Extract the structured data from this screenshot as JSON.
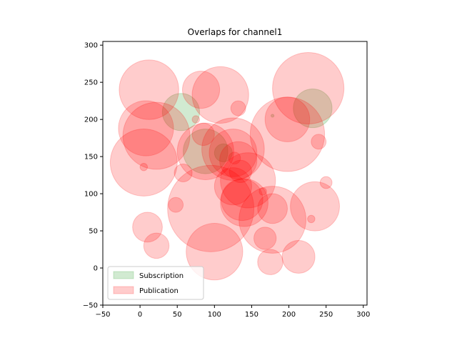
{
  "chart_data": {
    "type": "scatter",
    "title": "Overlaps for channel1",
    "xlabel": "",
    "ylabel": "",
    "xlim": [
      -50,
      305
    ],
    "ylim": [
      -50,
      305
    ],
    "xticks": [
      -50,
      0,
      50,
      100,
      150,
      200,
      250,
      300
    ],
    "yticks": [
      -50,
      0,
      50,
      100,
      150,
      200,
      250,
      300
    ],
    "grid": false,
    "legend_position": "lower-left",
    "series": [
      {
        "name": "Subscription",
        "color": "#2ca02c",
        "alpha": 0.22,
        "circles": [
          {
            "x": 55,
            "y": 210,
            "r": 25
          },
          {
            "x": 88,
            "y": 157,
            "r": 30
          },
          {
            "x": 112,
            "y": 155,
            "r": 12
          },
          {
            "x": 232,
            "y": 215,
            "r": 26
          },
          {
            "x": 178,
            "y": 205,
            "r": 2
          }
        ]
      },
      {
        "name": "Publication",
        "color": "#ff0000",
        "alpha": 0.2,
        "circles": [
          {
            "x": 12,
            "y": 240,
            "r": 40
          },
          {
            "x": 8,
            "y": 188,
            "r": 37
          },
          {
            "x": 22,
            "y": 178,
            "r": 45
          },
          {
            "x": 5,
            "y": 142,
            "r": 45
          },
          {
            "x": 5,
            "y": 136,
            "r": 5
          },
          {
            "x": 82,
            "y": 240,
            "r": 25
          },
          {
            "x": 108,
            "y": 233,
            "r": 38
          },
          {
            "x": 132,
            "y": 215,
            "r": 10
          },
          {
            "x": 75,
            "y": 200,
            "r": 5
          },
          {
            "x": 85,
            "y": 180,
            "r": 15
          },
          {
            "x": 88,
            "y": 157,
            "r": 38
          },
          {
            "x": 58,
            "y": 128,
            "r": 12
          },
          {
            "x": 125,
            "y": 160,
            "r": 42
          },
          {
            "x": 125,
            "y": 155,
            "r": 32
          },
          {
            "x": 132,
            "y": 145,
            "r": 25
          },
          {
            "x": 127,
            "y": 148,
            "r": 8
          },
          {
            "x": 135,
            "y": 130,
            "r": 15
          },
          {
            "x": 145,
            "y": 118,
            "r": 37
          },
          {
            "x": 125,
            "y": 110,
            "r": 25
          },
          {
            "x": 140,
            "y": 88,
            "r": 32
          },
          {
            "x": 137,
            "y": 92,
            "r": 28
          },
          {
            "x": 165,
            "y": 103,
            "r": 5
          },
          {
            "x": 95,
            "y": 80,
            "r": 58
          },
          {
            "x": 100,
            "y": 22,
            "r": 38
          },
          {
            "x": 178,
            "y": 65,
            "r": 45
          },
          {
            "x": 178,
            "y": 80,
            "r": 20
          },
          {
            "x": 168,
            "y": 40,
            "r": 15
          },
          {
            "x": 175,
            "y": 8,
            "r": 17
          },
          {
            "x": 213,
            "y": 15,
            "r": 22
          },
          {
            "x": 198,
            "y": 200,
            "r": 30
          },
          {
            "x": 198,
            "y": 180,
            "r": 50
          },
          {
            "x": 226,
            "y": 242,
            "r": 48
          },
          {
            "x": 240,
            "y": 170,
            "r": 10
          },
          {
            "x": 250,
            "y": 115,
            "r": 8
          },
          {
            "x": 235,
            "y": 83,
            "r": 33
          },
          {
            "x": 230,
            "y": 66,
            "r": 5
          },
          {
            "x": 48,
            "y": 85,
            "r": 10
          },
          {
            "x": 10,
            "y": 55,
            "r": 20
          },
          {
            "x": 22,
            "y": 30,
            "r": 17
          }
        ]
      }
    ]
  }
}
